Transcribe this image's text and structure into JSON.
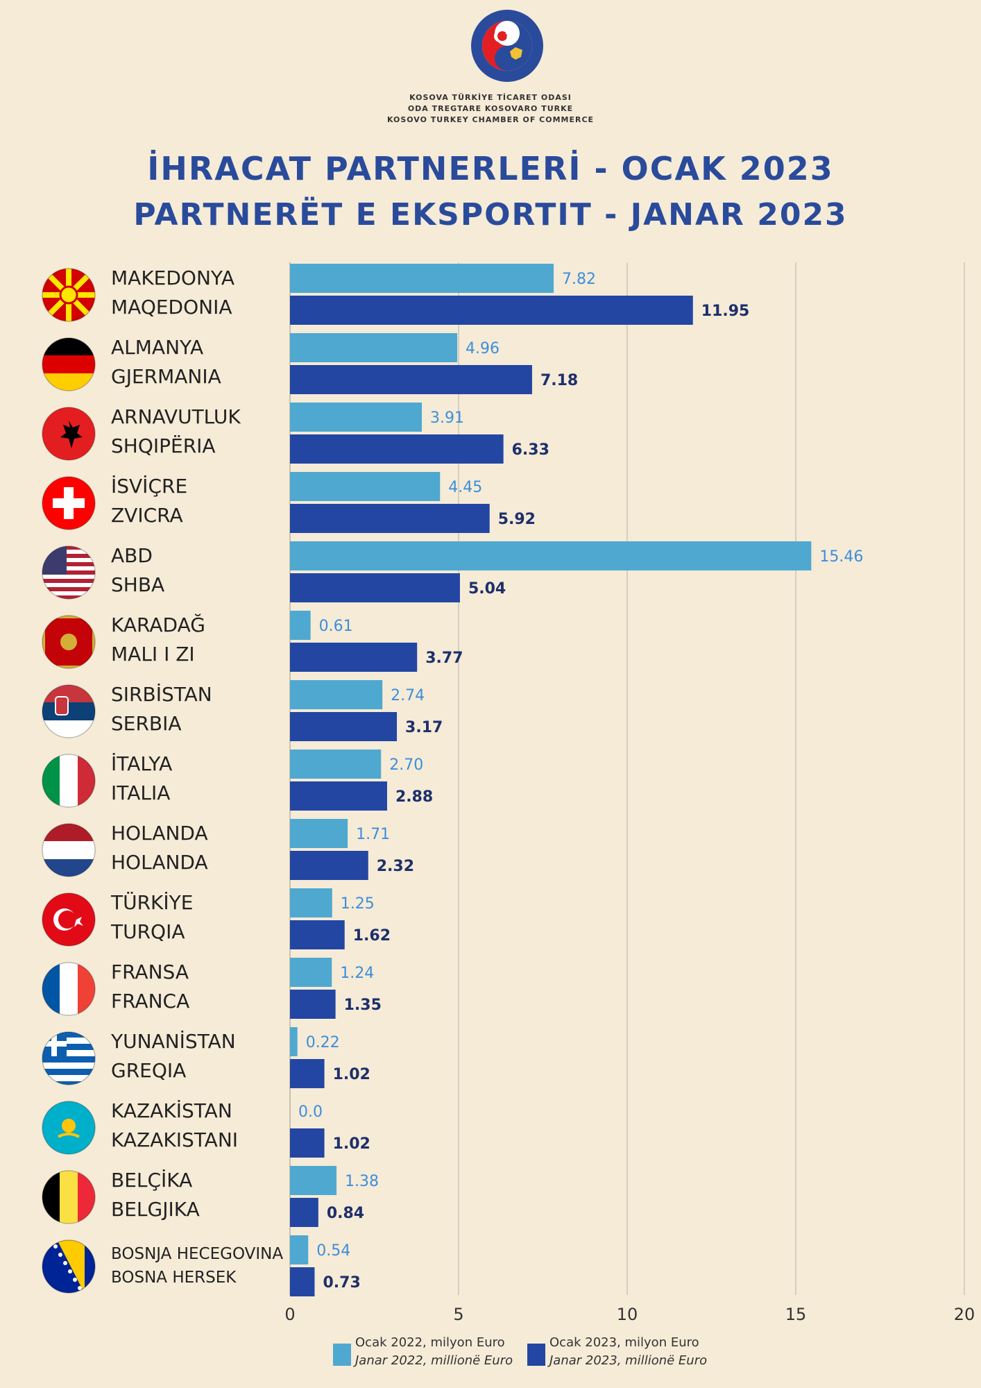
{
  "organization": {
    "line1": "KOSOVA TÜRKİYE TİCARET ODASI",
    "line2": "ODA TREGTARE KOSOVARO TURKE",
    "line3": "KOSOVO TURKEY CHAMBER OF COMMERCE",
    "logo_text": "ODA TREGTARE KOSOVARO TURKE · KOSOVA TÜRKİYE TİCARET ODASI"
  },
  "title_tr": "İHRACAT PARTNERLERİ - OCAK 2023",
  "title_sq": "PARTNERËT E EKSPORTIT - JANAR 2023",
  "colors": {
    "series2022": "#4fa8cf",
    "series2023": "#2346a2",
    "label2022": "#3d8edb",
    "label2023": "#1e2f6b",
    "grid": "#b8b2a6",
    "title": "#2a4b9b"
  },
  "legend": [
    {
      "line1": "Ocak 2022, milyon Euro",
      "line2": "Janar 2022, millionë Euro"
    },
    {
      "line1": "Ocak 2023, milyon Euro",
      "line2": "Janar 2023, millionë Euro"
    }
  ],
  "countries": [
    {
      "name_tr": "MAKEDONYA",
      "name_sq": "MAQEDONIA",
      "flag": "north-macedonia-flag-icon"
    },
    {
      "name_tr": "ALMANYA",
      "name_sq": "GJERMANIA",
      "flag": "germany-flag-icon"
    },
    {
      "name_tr": "ARNAVUTLUK",
      "name_sq": "SHQIPËRIA",
      "flag": "albania-flag-icon"
    },
    {
      "name_tr": "İSVİÇRE",
      "name_sq": "ZVICRA",
      "flag": "switzerland-flag-icon"
    },
    {
      "name_tr": "ABD",
      "name_sq": "SHBA",
      "flag": "usa-flag-icon"
    },
    {
      "name_tr": "KARADAĞ",
      "name_sq": "MALI I ZI",
      "flag": "montenegro-flag-icon"
    },
    {
      "name_tr": "SIRBİSTAN",
      "name_sq": "SERBIA",
      "flag": "serbia-flag-icon"
    },
    {
      "name_tr": "İTALYA",
      "name_sq": "ITALIA",
      "flag": "italy-flag-icon"
    },
    {
      "name_tr": "HOLANDA",
      "name_sq": "HOLANDA",
      "flag": "netherlands-flag-icon"
    },
    {
      "name_tr": "TÜRKİYE",
      "name_sq": "TURQIA",
      "flag": "turkey-flag-icon"
    },
    {
      "name_tr": "FRANSA",
      "name_sq": "FRANCA",
      "flag": "france-flag-icon"
    },
    {
      "name_tr": "YUNANİSTAN",
      "name_sq": "GREQIA",
      "flag": "greece-flag-icon"
    },
    {
      "name_tr": "KAZAKİSTAN",
      "name_sq": "KAZAKISTANI",
      "flag": "kazakhstan-flag-icon"
    },
    {
      "name_tr": "BELÇİKA",
      "name_sq": "BELGJIKA",
      "flag": "belgium-flag-icon"
    },
    {
      "name_tr": "BOSNJA HECEGOVINA",
      "name_sq": "BOSNA HERSEK",
      "flag": "bosnia-flag-icon"
    }
  ],
  "chart_data": {
    "type": "bar",
    "orientation": "horizontal",
    "title": "İHRACAT PARTNERLERİ - OCAK 2023",
    "subtitle": "PARTNERËT E EKSPORTIT - JANAR 2023",
    "categories": [
      "MAKEDONYA / MAQEDONIA",
      "ALMANYA / GJERMANIA",
      "ARNAVUTLUK / SHQIPËRIA",
      "İSVİÇRE / ZVICRA",
      "ABD / SHBA",
      "KARADAĞ / MALI I ZI",
      "SIRBİSTAN / SERBIA",
      "İTALYA / ITALIA",
      "HOLANDA / HOLANDA",
      "TÜRKİYE / TURQIA",
      "FRANSA / FRANCA",
      "YUNANİSTAN / GREQIA",
      "KAZAKİSTAN / KAZAKISTANI",
      "BELÇİKA / BELGJIKA",
      "BOSNJA HECEGOVINA / BOSNA HERSEK"
    ],
    "series": [
      {
        "name": "Ocak 2022, milyon Euro / Janar 2022, millionë Euro",
        "values": [
          7.82,
          4.96,
          3.91,
          4.45,
          15.46,
          0.61,
          2.74,
          2.7,
          1.71,
          1.25,
          1.24,
          0.22,
          0.0,
          1.38,
          0.54
        ],
        "labels": [
          "7.82",
          "4.96",
          "3.91",
          "4.45",
          "15.46",
          "0.61",
          "2.74",
          "2.70",
          "1.71",
          "1.25",
          "1.24",
          "0.22",
          "0.0",
          "1.38",
          "0.54"
        ]
      },
      {
        "name": "Ocak 2023, milyon Euro / Janar 2023, millionë Euro",
        "values": [
          11.95,
          7.18,
          6.33,
          5.92,
          5.04,
          3.77,
          3.17,
          2.88,
          2.32,
          1.62,
          1.35,
          1.02,
          1.02,
          0.84,
          0.73
        ],
        "labels": [
          "11.95",
          "7.18",
          "6.33",
          "5.92",
          "5.04",
          "3.77",
          "3.17",
          "2.88",
          "2.32",
          "1.62",
          "1.35",
          "1.02",
          "1.02",
          "0.84",
          "0.73"
        ]
      }
    ],
    "xlim": [
      0,
      20
    ],
    "xticks": [
      "0",
      "5",
      "10",
      "15",
      "20"
    ],
    "grid": true,
    "legend_position": "bottom"
  }
}
